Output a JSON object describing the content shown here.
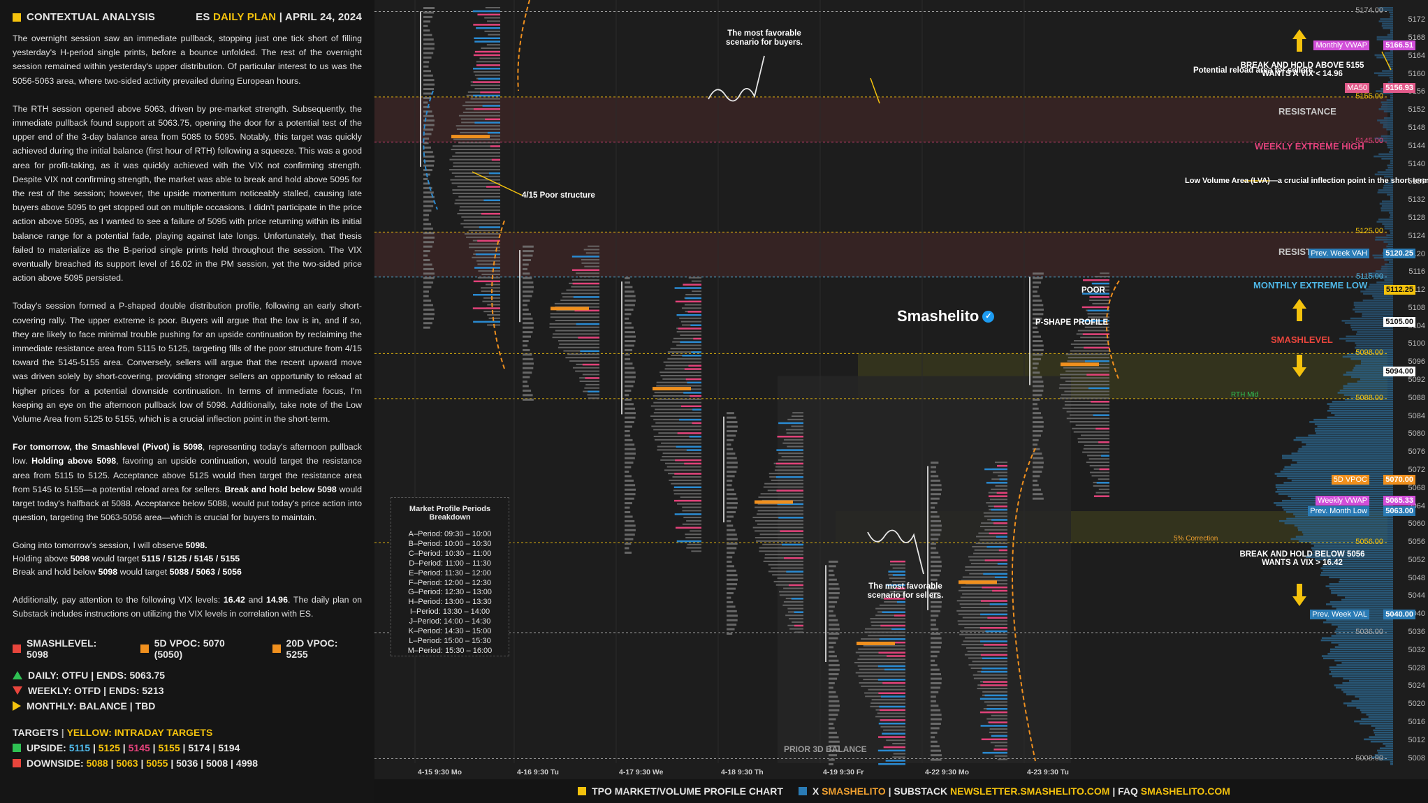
{
  "header": {
    "left": "CONTEXTUAL ANALYSIS",
    "right_prefix": "ES",
    "right_highlight": "DAILY PLAN",
    "right_date": "| APRIL 24, 2024"
  },
  "paragraphs": [
    "The overnight session saw an immediate pullback, stopping just one tick short of filling yesterday's H-period single prints, before a bounce unfolded. The rest of the overnight session remained within yesterday's upper distribution. Of particular interest to us was the 5056-5063 area, where two-sided activity prevailed during European hours.",
    "The RTH session opened above 5063, driven by pre-market strength. Subsequently, the immediate pullback found support at 5063.75, opening the door for a potential test of the upper end of the 3-day balance area from 5085 to 5095. Notably, this target was quickly achieved during the initial balance (first hour of RTH) following a squeeze. This was a good area for profit-taking, as it was quickly achieved with the VIX not confirming strength. Despite VIX not confirming strength, the market was able to break and hold above 5095 for the rest of the session; however, the upside momentum noticeably stalled, causing late buyers above 5095 to get stopped out on multiple occasions. I didn't participate in the price action above 5095, as I wanted to see a failure of 5095 with price returning within its initial balance range for a potential fade, playing against late longs. Unfortunately, that thesis failed to materialize as the B-period single prints held throughout the session. The VIX eventually breached its support level of 16.02 in the PM session, yet the two-sided price action above 5095 persisted.",
    "Today's session formed a P-shaped double distribution profile, following an early short-covering rally. The upper extreme is poor. Buyers will argue that the low is in, and if so, they are likely to face minimal trouble pushing for an upside continuation by reclaiming the immediate resistance area from 5115 to 5125, targeting fills of the poor structure from 4/15 toward the 5145-5155 area. Conversely, sellers will argue that the recent upward move was driven solely by short-covering, providing stronger sellers an opportunity to reload at higher prices for a potential downside continuation. In terms of immediate focus, I'm keeping an eye on the afternoon pullback low of 5098. Additionally, take note of the Low Volume Area from 5125 to 5155, which is a crucial inflection point in the short-term."
  ],
  "plan": {
    "p1_a": "For tomorrow, the Smashlevel (Pivot) is 5098",
    "p1_b": ", representing today's afternoon pullback low. ",
    "p1_c": "Holding above 5098",
    "p1_d": ", favoring an upside continuation, would target the resistance area from 5115 to 5125. Acceptance above 5125 would then target the resistance area from 5145 to 5155—a potential reload area for sellers. ",
    "p1_e": "Break and hold below 5098",
    "p1_f": " would target today's halfback at 5088. Acceptance below 5088, would put today's price action into question, targeting the 5063-5056 area—which is crucial for buyers to maintain.",
    "observe_a": "Going into tomorrow's session, I will observe ",
    "observe_b": "5098.",
    "hold_a": "Holding above ",
    "hold_b": "5098",
    "hold_c": " would target ",
    "hold_d": "5115 / 5125 / 5145 / 5155",
    "break_a": "Break and hold below ",
    "break_b": "5098",
    "break_c": " would target ",
    "break_d": "5088 / 5063 / 5056",
    "vix_a": "Additionally, pay attention to the following VIX levels: ",
    "vix_b": "16.42",
    "vix_c": " and ",
    "vix_d": "14.96",
    "vix_e": ". The daily plan on Substack includes instructions on utilizing the VIX levels in correlation with ES."
  },
  "levels": {
    "smashlevel": "SMASHLEVEL: 5098",
    "vpoc5d": "5D VPOC: 5070 (5050)",
    "vpoc20d": "20D VPOC: 5255",
    "daily": "DAILY: OTFU | ENDS: 5063.75",
    "weekly": "WEEKLY: OTFD | ENDS: 5213",
    "monthly": "MONTHLY: BALANCE | TBD"
  },
  "targets": {
    "title_a": "TARGETS",
    "title_b": "|",
    "title_c": "YELLOW: INTRADAY TARGETS",
    "upside_label": "UPSIDE:",
    "upside": [
      "5115",
      "5125",
      "5145",
      "5155",
      "5174",
      "5194"
    ],
    "downside_label": "DOWNSIDE:",
    "downside": [
      "5088",
      "5063",
      "5055",
      "5036",
      "5008",
      "4998"
    ]
  },
  "periods": {
    "title": "Market Profile Periods Breakdown",
    "items": [
      "A–Period: 09:30 – 10:00",
      "B–Period: 10:00 – 10:30",
      "C–Period: 10:30 – 11:00",
      "D–Period: 11:00 – 11:30",
      "E–Period: 11:30 – 12:00",
      "F–Period: 12:00 – 12:30",
      "G–Period: 12:30 – 13:00",
      "H–Period: 13:00 – 13:30",
      "I–Period: 13:30 – 14:00",
      "J–Period: 14:00 – 14:30",
      "K–Period: 14:30 – 15:00",
      "L–Period: 15:00 – 15:30",
      "M–Period: 15:30 – 16:00"
    ]
  },
  "annotations": {
    "buyers": "The most favorable scenario for buyers.",
    "reload": "Potential reload area for sellers.",
    "resistance1": "RESISTANCE",
    "weekly_extreme": "WEEKLY EXTREME HIGH",
    "lva": "Low Volume Area (LVA)—a crucial inflection point in the short-term.",
    "poor415": "4/15 Poor structure",
    "resistance2": "RESISTANCE",
    "poor": "POOR",
    "pshape": "P-SHAPE PROFILE",
    "monthly_extreme_low": "MONTHLY EXTREME LOW",
    "smashlevel": "SMASHLEVEL",
    "rth_mid": "RTH Mid",
    "break_above": "BREAK AND HOLD ABOVE 5155",
    "vix_above": "WANTS A VIX < 14.96",
    "break_below": "BREAK AND HOLD BELOW 5056",
    "vix_below": "WANTS A VIX > 16.42",
    "sellers": "The most favorable scenario for sellers.",
    "prior3d": "PRIOR 3D BALANCE",
    "brand": "Smashelito",
    "correction": "5% Correction"
  },
  "footer": {
    "a": "TPO MARKET/VOLUME PROFILE CHART",
    "b": "X",
    "c": "SMASHELITO",
    "d": "| SUBSTACK",
    "e": "NEWSLETTER.SMASHELITO.COM",
    "f": "| FAQ",
    "g": "SMASHELITO.COM"
  },
  "chart_data": {
    "type": "table",
    "sessions": [
      "4-15  9:30 Mo",
      "4-16  9:30 Tu",
      "4-17  9:30 We",
      "4-18  9:30 Th",
      "4-19  9:30 Fr",
      "4-22  9:30 Mo",
      "4-23  9:30 Tu"
    ],
    "y_axis_ticks": [
      5172,
      5168,
      5164,
      5160,
      5156,
      5152,
      5148,
      5144,
      5140,
      5136,
      5132,
      5128,
      5124,
      5120,
      5116,
      5112,
      5108,
      5104,
      5100,
      5096,
      5092,
      5088,
      5084,
      5080,
      5076,
      5072,
      5068,
      5064,
      5060,
      5056,
      5052,
      5048,
      5044,
      5040,
      5036,
      5032,
      5028,
      5024,
      5020,
      5016,
      5012,
      5008
    ],
    "ylim": [
      5007,
      5175
    ],
    "price_levels": [
      {
        "price": 5174.0,
        "label": "5174.00"
      },
      {
        "price": 5155.0,
        "label": "5155.00"
      },
      {
        "price": 5145.0,
        "label": "5145.00"
      },
      {
        "price": 5125.0,
        "label": "5125.00"
      },
      {
        "price": 5115.0,
        "label": "5115.00"
      },
      {
        "price": 5098.0,
        "label": "5098.00"
      },
      {
        "price": 5088.0,
        "label": "5088.00"
      },
      {
        "price": 5056.0,
        "label": "5056.00"
      },
      {
        "price": 5036.0,
        "label": "5036.00"
      },
      {
        "price": 5008.0,
        "label": "5008.00"
      }
    ],
    "tags": [
      {
        "price": 5166.51,
        "name": "Monthly VWAP",
        "value": "5166.51",
        "color": "#d24fd9"
      },
      {
        "price": 5156.93,
        "name": "MA50",
        "value": "5156.93",
        "color": "#e25a8a"
      },
      {
        "price": 5120.25,
        "name": "Prev. Week VAH",
        "value": "5120.25",
        "color": "#2a7bb5"
      },
      {
        "price": 5112.25,
        "name": "",
        "value": "5112.25",
        "color": "#f4c20d"
      },
      {
        "price": 5105.0,
        "name": "",
        "value": "5105.00",
        "color": "#ffffff"
      },
      {
        "price": 5094.0,
        "name": "",
        "value": "5094.00",
        "color": "#ffffff"
      },
      {
        "price": 5070.0,
        "name": "5D VPOC",
        "value": "5070.00",
        "color": "#f0901e"
      },
      {
        "price": 5065.33,
        "name": "Weekly VWAP",
        "value": "5065.33",
        "color": "#d24fd9"
      },
      {
        "price": 5063.0,
        "name": "Prev. Month Low",
        "value": "5063.00",
        "color": "#2a7bb5"
      },
      {
        "price": 5040.0,
        "name": "Prev. Week VAL",
        "value": "5040.00",
        "color": "#2a7bb5"
      }
    ]
  },
  "colors": {
    "accent": "#f4c20d",
    "orange": "#f0901e",
    "red": "#e8453c",
    "green": "#2fc153",
    "blue": "#2a7bb5",
    "pink": "#e2427a",
    "cyan": "#4fb8e8"
  }
}
